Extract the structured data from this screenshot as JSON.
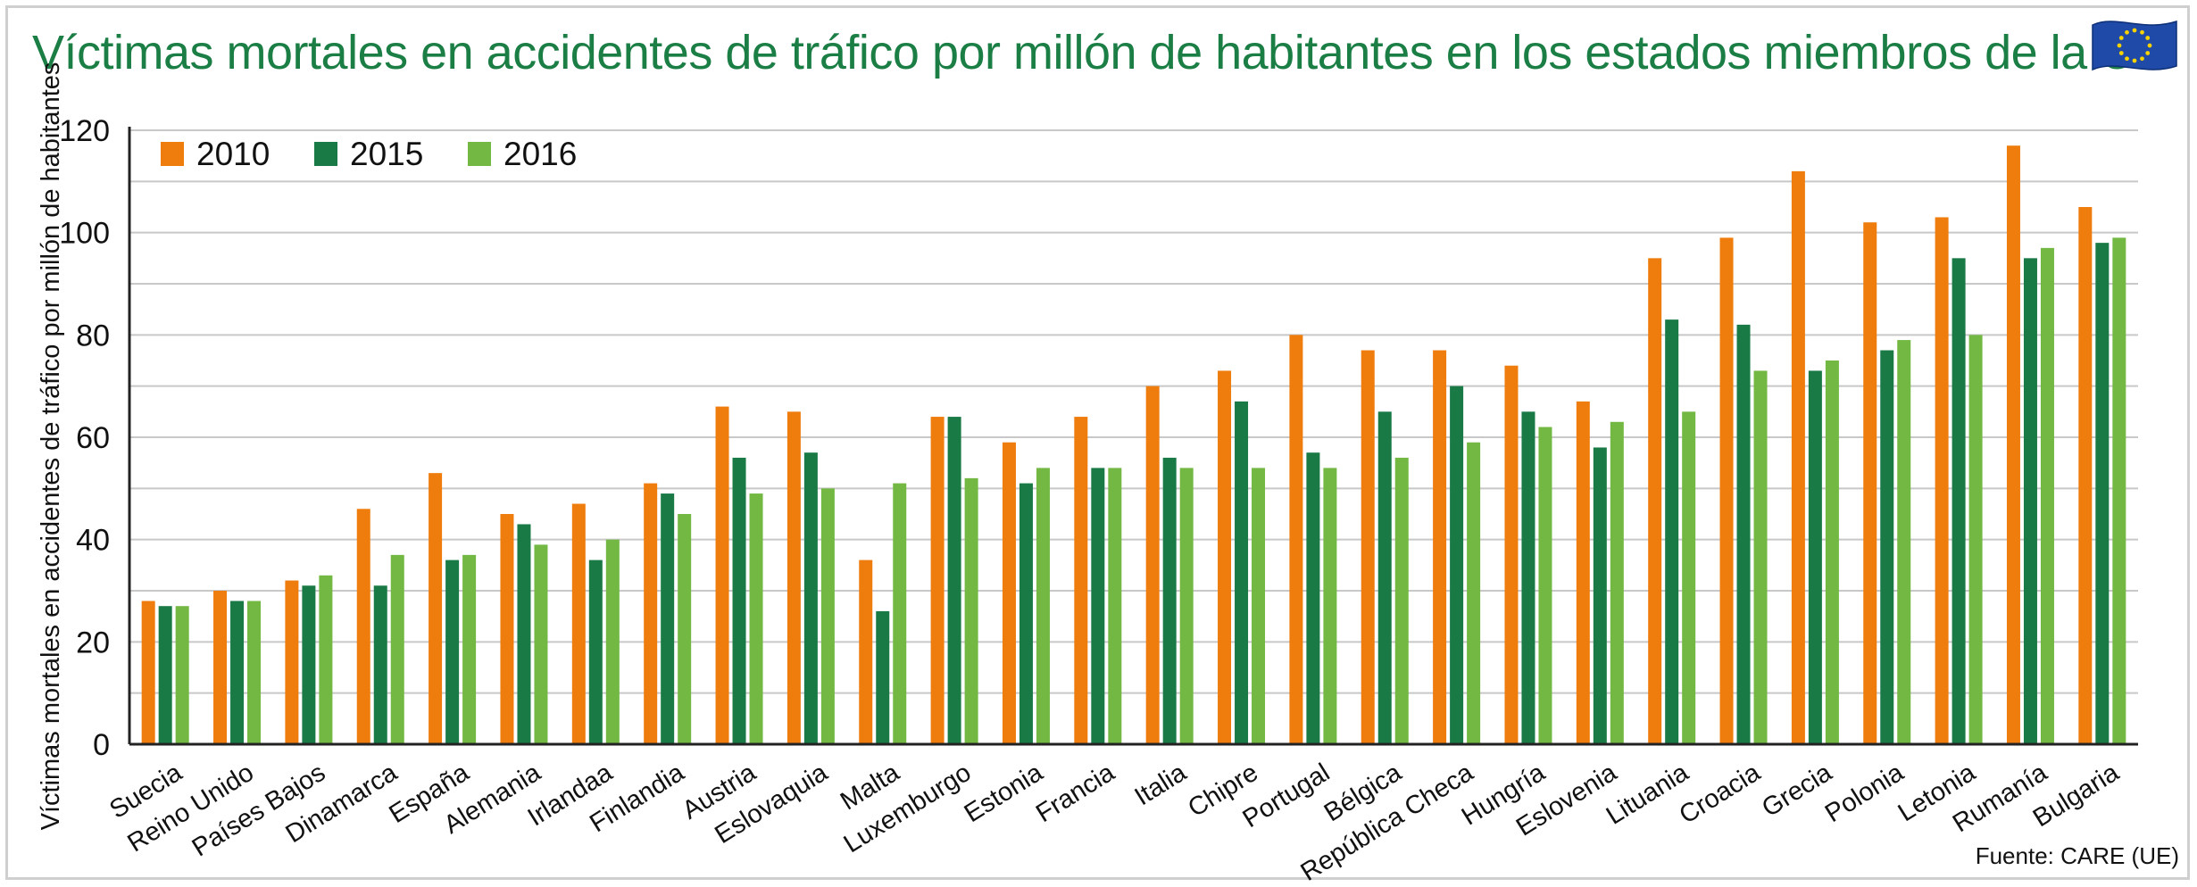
{
  "title": "Víctimas mortales en accidentes de tráfico por millón de habitantes en los estados miembros de la UE",
  "source": "Fuente: CARE (UE)",
  "flag_icon": "eu-flag-icon",
  "colors": {
    "title": "#1a7e45",
    "s2010": "#ef7d0e",
    "s2015": "#1a7a46",
    "s2016": "#72b843",
    "grid": "#c8c8c8",
    "flag_blue": "#1f4aa8",
    "flag_star": "#f6d300"
  },
  "chart_data": {
    "type": "bar",
    "ylabel": "Víctimas mortales en accidentes de tráfico por millón de habitantes",
    "xlabel": "",
    "ylim": [
      0,
      120
    ],
    "yticks": [
      0,
      20,
      40,
      60,
      80,
      100,
      120
    ],
    "grid": true,
    "legend_position": "top-left",
    "categories": [
      "Suecia",
      "Reino Unido",
      "Países Bajos",
      "Dinamarca",
      "España",
      "Alemania",
      "Irlandaa",
      "Finlandia",
      "Austria",
      "Eslovaquia",
      "Malta",
      "Luxemburgo",
      "Estonia",
      "Francia",
      "Italia",
      "Chipre",
      "Portugal",
      "Bélgica",
      "República Checa",
      "Hungría",
      "Eslovenia",
      "Lituania",
      "Croacia",
      "Grecia",
      "Polonia",
      "Letonia",
      "Rumanía",
      "Bulgaria"
    ],
    "series": [
      {
        "name": "2010",
        "values": [
          28,
          30,
          32,
          46,
          53,
          45,
          47,
          51,
          66,
          65,
          36,
          64,
          59,
          64,
          70,
          73,
          80,
          77,
          77,
          74,
          67,
          95,
          99,
          112,
          102,
          103,
          117,
          105
        ]
      },
      {
        "name": "2015",
        "values": [
          27,
          28,
          31,
          31,
          36,
          43,
          36,
          49,
          56,
          57,
          26,
          64,
          51,
          54,
          56,
          67,
          57,
          65,
          70,
          65,
          58,
          83,
          82,
          73,
          77,
          95,
          95,
          98
        ]
      },
      {
        "name": "2016",
        "values": [
          27,
          28,
          33,
          37,
          37,
          39,
          40,
          45,
          49,
          50,
          51,
          52,
          54,
          54,
          54,
          54,
          54,
          56,
          59,
          62,
          63,
          65,
          73,
          75,
          79,
          80,
          97,
          99
        ]
      }
    ]
  }
}
